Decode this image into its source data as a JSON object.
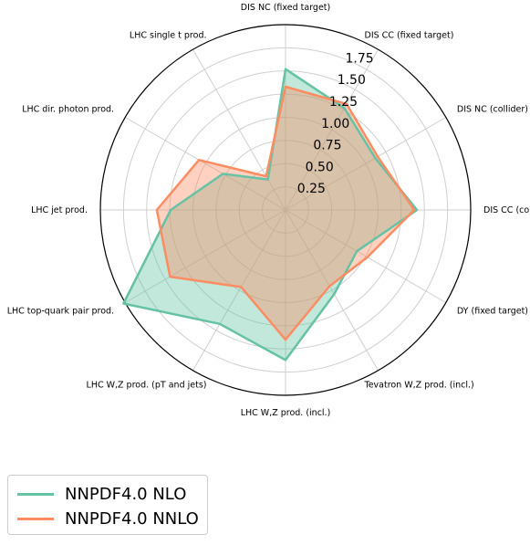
{
  "chart_data": {
    "type": "radar",
    "categories": [
      "DIS NC (fixed target)",
      "DIS CC (fixed target)",
      "DIS NC (collider)",
      "DIS CC (collider)",
      "DY (fixed target)",
      "Tevatron W,Z prod. (incl.)",
      "LHC W,Z prod. (incl.)",
      "LHC W,Z prod. (pT and jets)",
      "LHC top-quark pair prod.",
      "LHC jet prod.",
      "LHC dir. photon prod.",
      "LHC single t prod."
    ],
    "radial_ticks": [
      "0.25",
      "0.50",
      "0.75",
      "1.00",
      "1.25",
      "1.50",
      "1.75"
    ],
    "radial_tick_values": [
      0.25,
      0.5,
      0.75,
      1.0,
      1.25,
      1.5,
      1.75
    ],
    "rlim": [
      0,
      2.0
    ],
    "grid": true,
    "legend_position": "lower-left",
    "series": [
      {
        "name": "NNPDF4.0 NLO",
        "color": "#66c2a5",
        "values": [
          1.52,
          1.27,
          1.12,
          1.42,
          0.89,
          1.05,
          1.62,
          1.42,
          2.02,
          1.24,
          0.78,
          0.38
        ]
      },
      {
        "name": "NNPDF4.0 NNLO",
        "color": "#fc8d62",
        "values": [
          1.33,
          1.32,
          1.15,
          1.39,
          1.02,
          0.95,
          1.4,
          0.96,
          1.44,
          1.39,
          1.08,
          0.42
        ]
      }
    ]
  }
}
